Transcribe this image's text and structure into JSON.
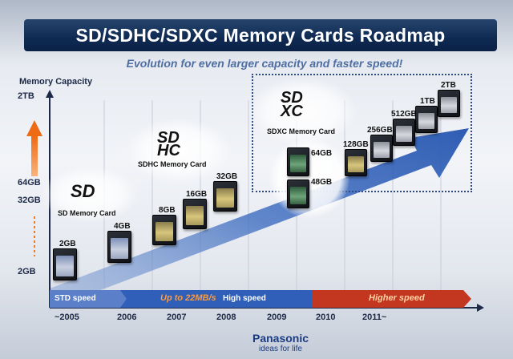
{
  "slide": {
    "title": "SD/SDHC/SDXC Memory Cards Roadmap",
    "subtitle": "Evolution for even larger capacity and faster speed!"
  },
  "axis": {
    "y_label": "Memory Capacity",
    "capacity_levels": [
      "2TB",
      "64GB",
      "32GB",
      "2GB"
    ],
    "years": [
      "~2005",
      "2006",
      "2007",
      "2008",
      "2009",
      "2010",
      "2011~"
    ]
  },
  "formats": {
    "sd": {
      "logo": "SD",
      "label": "SD Memory Card"
    },
    "sdhc": {
      "logo": "SD HC",
      "label": "SDHC Memory Card"
    },
    "sdxc": {
      "logo": "SD XC",
      "label": "SDXC Memory Card"
    }
  },
  "cards": [
    {
      "capacity": "2GB",
      "face": "2GB",
      "style": "blue"
    },
    {
      "capacity": "4GB",
      "face": "4GB",
      "style": "blue"
    },
    {
      "capacity": "8GB",
      "face": "8GB",
      "style": "gold"
    },
    {
      "capacity": "16GB",
      "face": "16GB",
      "style": "gold"
    },
    {
      "capacity": "32GB",
      "face": "32GB",
      "style": "gold"
    },
    {
      "capacity": "64GB",
      "face": "",
      "style": "green"
    },
    {
      "capacity": "48GB",
      "face": "",
      "style": "green"
    },
    {
      "capacity": "128GB",
      "face": "",
      "style": "gold"
    },
    {
      "capacity": "256GB",
      "face": "",
      "style": "gray"
    },
    {
      "capacity": "512GB",
      "face": "",
      "style": "gray"
    },
    {
      "capacity": "1TB",
      "face": "",
      "style": "gray"
    },
    {
      "capacity": "2TB",
      "face": "",
      "style": "gray"
    }
  ],
  "speed": {
    "std": "STD speed",
    "up_to": "Up to 22MB/s",
    "high": "High speed",
    "higher": "Higher speed"
  },
  "brand": {
    "name": "Panasonic",
    "tagline": "ideas for life"
  },
  "colors": {
    "header": "#0f2a52",
    "arrow": "#3a6fc2",
    "speed_blue": "#2f5fb8",
    "speed_red": "#c3361f",
    "capacity_arrow": "#f07a1e"
  }
}
